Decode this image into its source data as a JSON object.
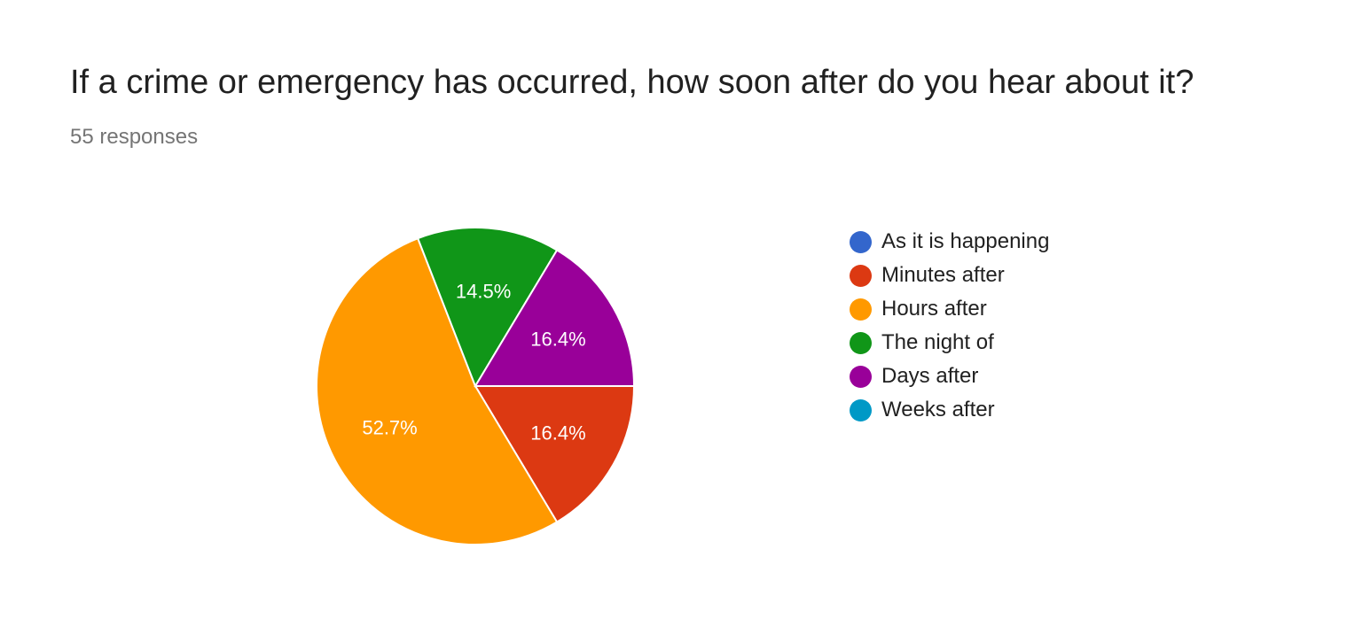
{
  "question": {
    "title": "If a crime or emergency has occurred, how soon after do you hear about it?",
    "responses": "55 responses"
  },
  "chart_data": {
    "type": "pie",
    "categories": [
      "As it is happening",
      "Minutes after",
      "Hours after",
      "The night of",
      "Days after",
      "Weeks after"
    ],
    "values": [
      0,
      16.4,
      52.7,
      14.5,
      16.4,
      0
    ],
    "labels": [
      "",
      "16.4%",
      "52.7%",
      "14.5%",
      "16.4%",
      ""
    ],
    "colors": [
      "#3366cc",
      "#dc3912",
      "#ff9900",
      "#109618",
      "#990099",
      "#0099c6"
    ],
    "start": "3 o'clock",
    "direction": "clockwise",
    "legend_position": "right"
  }
}
